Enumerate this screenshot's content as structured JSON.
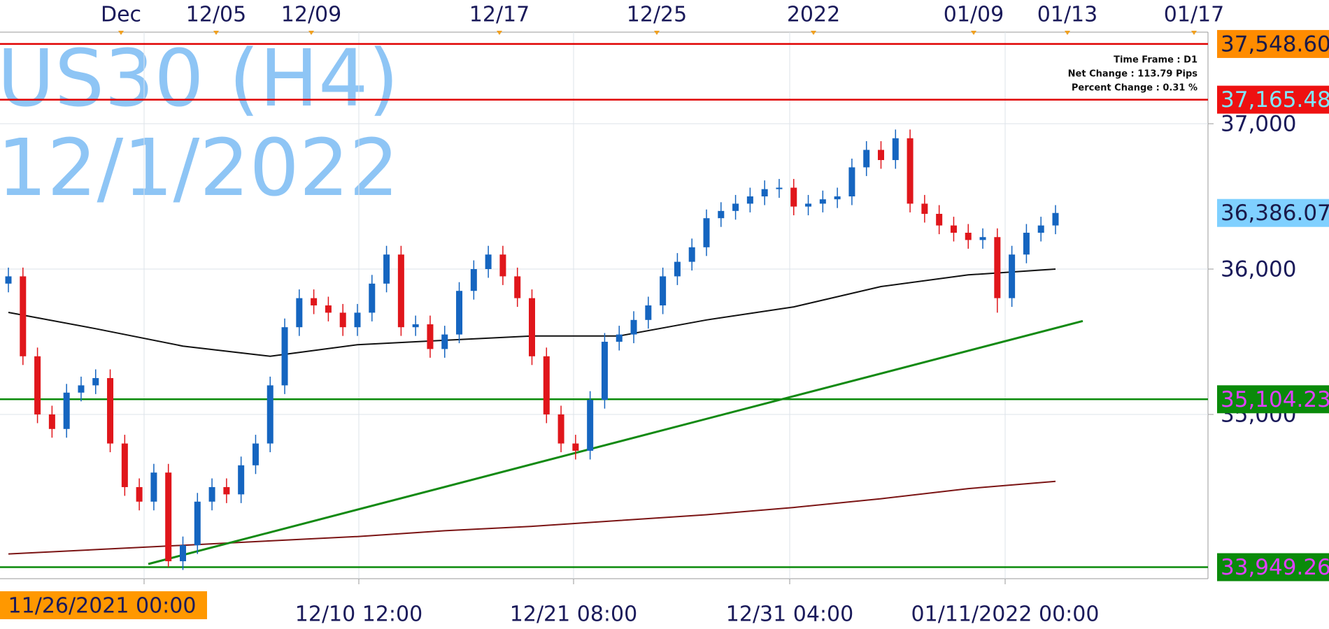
{
  "chart_data": {
    "type": "candlestick",
    "title": "US30 (H4)",
    "subtitle": "12/1/2022",
    "info": [
      "Time Frame : D1",
      "Net Change : 113.79 Pips",
      "Percent Change : 0.31 %"
    ],
    "top_labels": [
      "Dec",
      "12/05",
      "12/09",
      "12/17",
      "12/25",
      "2022",
      "01/09",
      "01/13",
      "01/17"
    ],
    "bottom_labels": [
      "11/26/2021 00:00",
      "12/10 12:00",
      "12/21 08:00",
      "12/31 04:00",
      "01/11/2022 00:00"
    ],
    "bottom_highlight_color": "#ff9800",
    "up_color": "#1565c0",
    "down_color": "#e0161b",
    "grid": true,
    "ylim": [
      33870,
      37630
    ],
    "yticks": [
      {
        "value": 35000,
        "label": "35,000"
      },
      {
        "value": 36000,
        "label": "36,000"
      },
      {
        "value": 37000,
        "label": "37,000"
      }
    ],
    "candles": [
      [
        35900,
        36010,
        35840,
        35950
      ],
      [
        35950,
        36010,
        35340,
        35400
      ],
      [
        35400,
        35460,
        34940,
        35000
      ],
      [
        35000,
        35060,
        34840,
        34900
      ],
      [
        34900,
        35210,
        34840,
        35150
      ],
      [
        35150,
        35260,
        35090,
        35200
      ],
      [
        35200,
        35310,
        35140,
        35250
      ],
      [
        35250,
        35310,
        34740,
        34800
      ],
      [
        34800,
        34860,
        34440,
        34500
      ],
      [
        34500,
        34560,
        34340,
        34400
      ],
      [
        34400,
        34660,
        34340,
        34600
      ],
      [
        34600,
        34660,
        33950,
        33990
      ],
      [
        33990,
        34160,
        33930,
        34100
      ],
      [
        34100,
        34460,
        34040,
        34400
      ],
      [
        34400,
        34560,
        34340,
        34500
      ],
      [
        34500,
        34560,
        34390,
        34450
      ],
      [
        34450,
        34710,
        34390,
        34650
      ],
      [
        34650,
        34860,
        34590,
        34800
      ],
      [
        34800,
        35260,
        34740,
        35200
      ],
      [
        35200,
        35660,
        35140,
        35600
      ],
      [
        35600,
        35860,
        35540,
        35800
      ],
      [
        35800,
        35860,
        35690,
        35750
      ],
      [
        35750,
        35810,
        35640,
        35700
      ],
      [
        35700,
        35760,
        35540,
        35600
      ],
      [
        35600,
        35760,
        35540,
        35700
      ],
      [
        35700,
        35960,
        35640,
        35900
      ],
      [
        35900,
        36160,
        35840,
        36100
      ],
      [
        36100,
        36160,
        35540,
        35600
      ],
      [
        35600,
        35680,
        35540,
        35620
      ],
      [
        35620,
        35680,
        35390,
        35450
      ],
      [
        35450,
        35610,
        35390,
        35550
      ],
      [
        35550,
        35910,
        35490,
        35850
      ],
      [
        35850,
        36060,
        35790,
        36000
      ],
      [
        36000,
        36160,
        35940,
        36100
      ],
      [
        36100,
        36160,
        35890,
        35950
      ],
      [
        35950,
        36010,
        35740,
        35800
      ],
      [
        35800,
        35860,
        35340,
        35400
      ],
      [
        35400,
        35460,
        34940,
        35000
      ],
      [
        35000,
        35060,
        34740,
        34800
      ],
      [
        34800,
        34860,
        34690,
        34750
      ],
      [
        34750,
        35160,
        34690,
        35100
      ],
      [
        35100,
        35560,
        35040,
        35500
      ],
      [
        35500,
        35610,
        35440,
        35550
      ],
      [
        35550,
        35710,
        35490,
        35650
      ],
      [
        35650,
        35810,
        35590,
        35750
      ],
      [
        35750,
        36010,
        35690,
        35950
      ],
      [
        35950,
        36110,
        35890,
        36050
      ],
      [
        36050,
        36210,
        35990,
        36150
      ],
      [
        36150,
        36410,
        36090,
        36350
      ],
      [
        36350,
        36460,
        36290,
        36400
      ],
      [
        36400,
        36510,
        36340,
        36450
      ],
      [
        36450,
        36560,
        36390,
        36500
      ],
      [
        36500,
        36610,
        36440,
        36550
      ],
      [
        36550,
        36620,
        36490,
        36560
      ],
      [
        36560,
        36620,
        36370,
        36430
      ],
      [
        36430,
        36510,
        36370,
        36450
      ],
      [
        36450,
        36540,
        36390,
        36480
      ],
      [
        36480,
        36560,
        36420,
        36500
      ],
      [
        36500,
        36760,
        36440,
        36700
      ],
      [
        36700,
        36880,
        36640,
        36820
      ],
      [
        36820,
        36880,
        36690,
        36750
      ],
      [
        36750,
        36960,
        36690,
        36900
      ],
      [
        36900,
        36960,
        36390,
        36450
      ],
      [
        36450,
        36510,
        36320,
        36380
      ],
      [
        36380,
        36440,
        36240,
        36300
      ],
      [
        36300,
        36360,
        36190,
        36250
      ],
      [
        36250,
        36310,
        36140,
        36200
      ],
      [
        36200,
        36280,
        36140,
        36220
      ],
      [
        36220,
        36280,
        35700,
        35800
      ],
      [
        35800,
        36160,
        35740,
        36100
      ],
      [
        36100,
        36310,
        36040,
        36250
      ],
      [
        36250,
        36360,
        36190,
        36300
      ],
      [
        36300,
        36440,
        36240,
        36386
      ]
    ],
    "overlays": [
      {
        "color": "#111111",
        "values": [
          35702,
          35590,
          35470,
          35400,
          35480,
          35510,
          35540,
          35540,
          35650,
          35740,
          35880,
          35960,
          36000
        ]
      },
      {
        "color": "#7b1414",
        "values": [
          34040,
          34070,
          34100,
          34130,
          34160,
          34200,
          34230,
          34270,
          34310,
          34360,
          34420,
          34490,
          34540
        ]
      },
      {
        "color": "#138a13",
        "values": [
          33971,
          35643
        ]
      }
    ],
    "levels": [
      {
        "value": 37548.6,
        "label": "37,548.60",
        "line": "#e00000",
        "bg": "#ff8c00",
        "text_color": "#1a1a4a"
      },
      {
        "value": 37165.48,
        "label": "37,165.48",
        "line": "#e00000",
        "bg": "#ee1111",
        "text_color": "#7fe8ff"
      },
      {
        "value": 36386.07,
        "label": "36,386.07",
        "bg": "#7fd0ff",
        "text_color": "#1a1a4a"
      },
      {
        "value": 35104.23,
        "label": "35,104.23",
        "line": "#0a8a0a",
        "bg": "#0a8a0a",
        "text_color": "#e040ff"
      },
      {
        "value": 33949.26,
        "label": "33,949.26",
        "line": "#0a8a0a",
        "bg": "#0a8a0a",
        "text_color": "#e040ff"
      }
    ]
  }
}
